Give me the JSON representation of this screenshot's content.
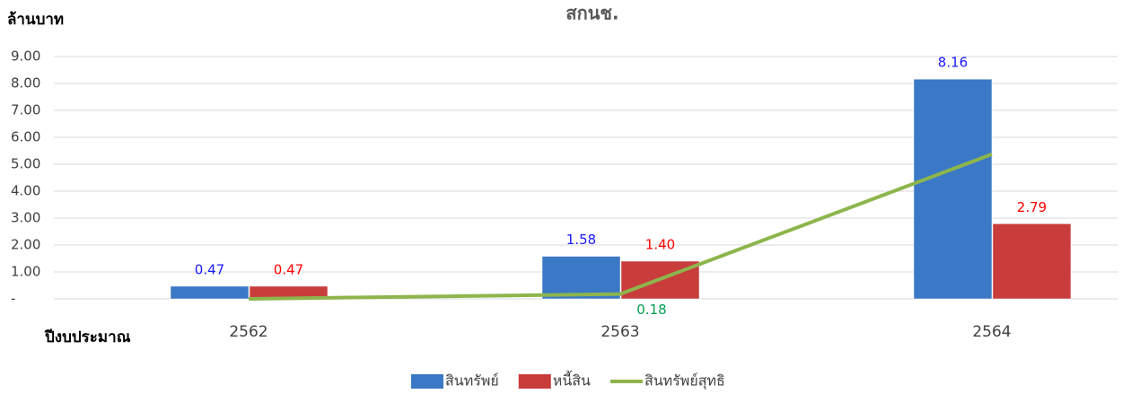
{
  "chart_data": {
    "type": "bar",
    "title": "สกนช.",
    "y_label": "ล้านบาท",
    "x_label": "ปีงบประมาณ",
    "categories": [
      "2562",
      "2563",
      "2564"
    ],
    "series": [
      {
        "name": "สินทรัพย์",
        "type": "bar",
        "color": "#3b78c6",
        "label_color": "#1a1aff",
        "values": [
          0.47,
          1.58,
          8.16
        ],
        "value_labels": [
          "0.47",
          "1.58",
          "8.16"
        ]
      },
      {
        "name": "หนี้สิน",
        "type": "bar",
        "color": "#c83c3c",
        "label_color": "#ff0000",
        "values": [
          0.47,
          1.4,
          2.79
        ],
        "value_labels": [
          "0.47",
          "1.40",
          "2.79"
        ]
      },
      {
        "name": "สินทรัพย์สุทธิ",
        "type": "line",
        "color": "#8db54c",
        "label_color": "#00a050",
        "values": [
          0,
          0.18,
          5.37
        ],
        "value_labels": [
          null,
          "0.18",
          null
        ]
      }
    ],
    "ylim": [
      0,
      9
    ],
    "yticks": [
      {
        "value": 0,
        "label": "-"
      },
      {
        "value": 1,
        "label": "1.00"
      },
      {
        "value": 2,
        "label": "2.00"
      },
      {
        "value": 3,
        "label": "3.00"
      },
      {
        "value": 4,
        "label": "4.00"
      },
      {
        "value": 5,
        "label": "5.00"
      },
      {
        "value": 6,
        "label": "6.00"
      },
      {
        "value": 7,
        "label": "7.00"
      },
      {
        "value": 8,
        "label": "8.00"
      },
      {
        "value": 9,
        "label": "9.00"
      }
    ],
    "grid": true,
    "legend": "bottom"
  }
}
